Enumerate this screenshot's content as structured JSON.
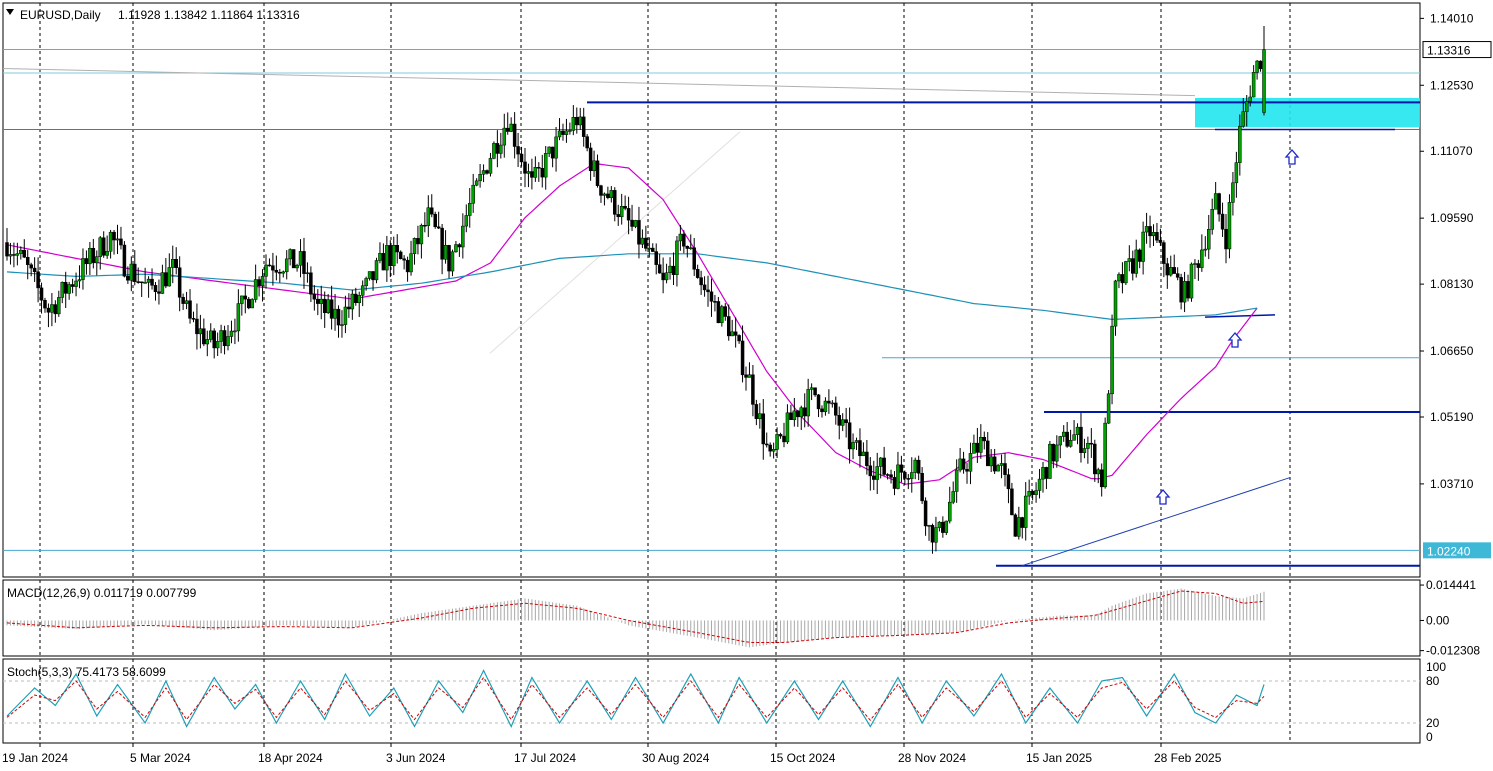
{
  "chart_data": {
    "type": "candlestick",
    "symbol_label": "EURUSD,Daily",
    "ohlc_label": "1.11928 1.13842 1.11864 1.13316",
    "last_price_label": "1.13316",
    "support_price_label": "1.02240",
    "y_ticks": [
      "1.14010",
      "1.12530",
      "1.11070",
      "1.09590",
      "1.08130",
      "1.06650",
      "1.05190",
      "1.03710"
    ],
    "y_range": [
      1.0165,
      1.1435
    ],
    "x_labels": [
      "19 Jan 2024",
      "5 Mar 2024",
      "18 Apr 2024",
      "3 Jun 2024",
      "17 Jul 2024",
      "30 Aug 2024",
      "15 Oct 2024",
      "28 Nov 2024",
      "15 Jan 2025",
      "28 Feb 2025"
    ],
    "price_path": [
      [
        0,
        1.0905
      ],
      [
        5,
        1.086
      ],
      [
        12,
        1.0755
      ],
      [
        20,
        1.083
      ],
      [
        30,
        1.092
      ],
      [
        34,
        1.086
      ],
      [
        41,
        1.08
      ],
      [
        48,
        1.0845
      ],
      [
        53,
        1.073
      ],
      [
        60,
        1.0675
      ],
      [
        67,
        1.0745
      ],
      [
        75,
        1.086
      ],
      [
        85,
        1.086
      ],
      [
        90,
        1.076
      ],
      [
        96,
        1.074
      ],
      [
        103,
        1.079
      ],
      [
        110,
        1.088
      ],
      [
        116,
        1.0855
      ],
      [
        122,
        1.096
      ],
      [
        128,
        1.086
      ],
      [
        134,
        1.0985
      ],
      [
        140,
        1.11
      ],
      [
        145,
        1.118
      ],
      [
        152,
        1.103
      ],
      [
        158,
        1.111
      ],
      [
        165,
        1.118
      ],
      [
        171,
        1.104
      ],
      [
        178,
        1.097
      ],
      [
        185,
        1.089
      ],
      [
        190,
        1.081
      ],
      [
        196,
        1.0915
      ],
      [
        202,
        1.08
      ],
      [
        209,
        1.072
      ],
      [
        215,
        1.06
      ],
      [
        221,
        1.042
      ],
      [
        228,
        1.053
      ],
      [
        234,
        1.057
      ],
      [
        240,
        1.052
      ],
      [
        245,
        1.045
      ],
      [
        251,
        1.041
      ],
      [
        257,
        1.039
      ],
      [
        263,
        1.042
      ],
      [
        267,
        1.027
      ],
      [
        270,
        1.026
      ],
      [
        276,
        1.04
      ],
      [
        282,
        1.046
      ],
      [
        288,
        1.04
      ],
      [
        292,
        1.028
      ],
      [
        297,
        1.034
      ],
      [
        302,
        1.043
      ],
      [
        308,
        1.048
      ],
      [
        313,
        1.046
      ],
      [
        317,
        1.038
      ],
      [
        321,
        1.08
      ],
      [
        326,
        1.086
      ],
      [
        331,
        1.093
      ],
      [
        336,
        1.085
      ],
      [
        341,
        1.079
      ],
      [
        345,
        1.087
      ],
      [
        350,
        1.099
      ],
      [
        353,
        1.092
      ],
      [
        357,
        1.115
      ],
      [
        361,
        1.128
      ],
      [
        364,
        1.133
      ]
    ],
    "moving_averages": [
      {
        "color": "#d000d0",
        "points": [
          [
            0,
            1.09
          ],
          [
            20,
            1.087
          ],
          [
            40,
            1.084
          ],
          [
            60,
            1.082
          ],
          [
            80,
            1.08
          ],
          [
            100,
            1.078
          ],
          [
            115,
            1.08
          ],
          [
            130,
            1.082
          ],
          [
            140,
            1.086
          ],
          [
            150,
            1.096
          ],
          [
            160,
            1.103
          ],
          [
            170,
            1.108
          ],
          [
            180,
            1.107
          ],
          [
            190,
            1.1
          ],
          [
            200,
            1.088
          ],
          [
            210,
            1.075
          ],
          [
            220,
            1.062
          ],
          [
            230,
            1.052
          ],
          [
            240,
            1.044
          ],
          [
            250,
            1.04
          ],
          [
            260,
            1.037
          ],
          [
            270,
            1.038
          ],
          [
            280,
            1.043
          ],
          [
            290,
            1.044
          ],
          [
            300,
            1.0425
          ],
          [
            310,
            1.0395
          ],
          [
            315,
            1.038
          ],
          [
            320,
            1.039
          ],
          [
            330,
            1.048
          ],
          [
            340,
            1.056
          ],
          [
            350,
            1.063
          ],
          [
            355,
            1.069
          ],
          [
            362,
            1.076
          ]
        ]
      },
      {
        "color": "#1e90b8",
        "points": [
          [
            0,
            1.084
          ],
          [
            20,
            1.083
          ],
          [
            40,
            1.0835
          ],
          [
            60,
            1.0825
          ],
          [
            80,
            1.0815
          ],
          [
            100,
            1.08
          ],
          [
            120,
            1.0815
          ],
          [
            140,
            1.084
          ],
          [
            160,
            1.087
          ],
          [
            180,
            1.088
          ],
          [
            200,
            1.088
          ],
          [
            220,
            1.086
          ],
          [
            240,
            1.083
          ],
          [
            260,
            1.08
          ],
          [
            280,
            1.077
          ],
          [
            300,
            1.0755
          ],
          [
            320,
            1.0735
          ],
          [
            335,
            1.074
          ],
          [
            350,
            1.0745
          ],
          [
            362,
            1.076
          ]
        ]
      }
    ],
    "horizontal_levels": [
      {
        "price": 1.1332,
        "color": "#8aa0a0"
      },
      {
        "price": 1.128,
        "color": "#7ec8d8"
      },
      {
        "price": 1.1155,
        "color": "#707070"
      },
      {
        "price": 1.065,
        "color": "#4aa6d0"
      },
      {
        "price": 1.0224,
        "color": "#4aa6d0"
      }
    ],
    "resistance_zone": [
      1.116,
      1.1225
    ],
    "macd": {
      "label": "MACD(12,26,9) 0.011719 0.007799",
      "y_ticks": [
        "0.014441",
        "0.00",
        "-0.012308"
      ],
      "y_range": [
        -0.0145,
        0.0165
      ],
      "histogram": [
        [
          0,
          -0.002
        ],
        [
          20,
          -0.0035
        ],
        [
          40,
          -0.0015
        ],
        [
          60,
          -0.004
        ],
        [
          80,
          -0.002
        ],
        [
          100,
          -0.003
        ],
        [
          120,
          0.003
        ],
        [
          135,
          0.006
        ],
        [
          150,
          0.009
        ],
        [
          165,
          0.006
        ],
        [
          180,
          -0.002
        ],
        [
          200,
          -0.007
        ],
        [
          215,
          -0.011
        ],
        [
          225,
          -0.009
        ],
        [
          240,
          -0.007
        ],
        [
          260,
          -0.006
        ],
        [
          275,
          -0.005
        ],
        [
          290,
          0.0
        ],
        [
          305,
          0.002
        ],
        [
          315,
          0.002
        ],
        [
          320,
          0.006
        ],
        [
          330,
          0.011
        ],
        [
          340,
          0.013
        ],
        [
          350,
          0.01
        ],
        [
          358,
          0.009
        ],
        [
          364,
          0.0117
        ]
      ],
      "signal": [
        [
          0,
          -0.001
        ],
        [
          20,
          -0.003
        ],
        [
          40,
          -0.002
        ],
        [
          60,
          -0.003
        ],
        [
          80,
          -0.0025
        ],
        [
          100,
          -0.003
        ],
        [
          120,
          0.001
        ],
        [
          135,
          0.005
        ],
        [
          150,
          0.007
        ],
        [
          165,
          0.005
        ],
        [
          180,
          0.0
        ],
        [
          200,
          -0.005
        ],
        [
          215,
          -0.009
        ],
        [
          225,
          -0.009
        ],
        [
          240,
          -0.007
        ],
        [
          260,
          -0.006
        ],
        [
          275,
          -0.005
        ],
        [
          290,
          -0.001
        ],
        [
          305,
          0.001
        ],
        [
          315,
          0.002
        ],
        [
          320,
          0.004
        ],
        [
          330,
          0.008
        ],
        [
          340,
          0.012
        ],
        [
          350,
          0.011
        ],
        [
          358,
          0.007
        ],
        [
          364,
          0.0078
        ]
      ]
    },
    "stoch": {
      "label": "Stoch(5,3,3) 75.4173 58.6099",
      "y_ticks": [
        "100",
        "80",
        "20",
        "0"
      ],
      "y_range": [
        0,
        100
      ],
      "main": [
        [
          0,
          30
        ],
        [
          8,
          70
        ],
        [
          14,
          45
        ],
        [
          20,
          90
        ],
        [
          26,
          30
        ],
        [
          32,
          75
        ],
        [
          40,
          20
        ],
        [
          46,
          80
        ],
        [
          52,
          15
        ],
        [
          60,
          85
        ],
        [
          66,
          40
        ],
        [
          72,
          75
        ],
        [
          78,
          20
        ],
        [
          85,
          80
        ],
        [
          92,
          25
        ],
        [
          98,
          90
        ],
        [
          105,
          30
        ],
        [
          112,
          70
        ],
        [
          118,
          15
        ],
        [
          125,
          80
        ],
        [
          132,
          35
        ],
        [
          138,
          95
        ],
        [
          146,
          15
        ],
        [
          152,
          85
        ],
        [
          160,
          20
        ],
        [
          168,
          80
        ],
        [
          175,
          25
        ],
        [
          182,
          85
        ],
        [
          190,
          20
        ],
        [
          198,
          90
        ],
        [
          206,
          20
        ],
        [
          212,
          85
        ],
        [
          220,
          20
        ],
        [
          228,
          80
        ],
        [
          235,
          25
        ],
        [
          242,
          80
        ],
        [
          250,
          15
        ],
        [
          258,
          85
        ],
        [
          265,
          20
        ],
        [
          272,
          80
        ],
        [
          280,
          30
        ],
        [
          288,
          90
        ],
        [
          295,
          20
        ],
        [
          302,
          70
        ],
        [
          310,
          20
        ],
        [
          317,
          80
        ],
        [
          323,
          85
        ],
        [
          330,
          30
        ],
        [
          338,
          90
        ],
        [
          344,
          35
        ],
        [
          350,
          20
        ],
        [
          356,
          60
        ],
        [
          362,
          45
        ],
        [
          364,
          75
        ]
      ],
      "signal": [
        [
          0,
          28
        ],
        [
          8,
          60
        ],
        [
          14,
          52
        ],
        [
          20,
          80
        ],
        [
          26,
          40
        ],
        [
          32,
          65
        ],
        [
          40,
          28
        ],
        [
          46,
          70
        ],
        [
          52,
          25
        ],
        [
          60,
          75
        ],
        [
          66,
          48
        ],
        [
          72,
          68
        ],
        [
          78,
          28
        ],
        [
          85,
          70
        ],
        [
          92,
          32
        ],
        [
          98,
          80
        ],
        [
          105,
          38
        ],
        [
          112,
          62
        ],
        [
          118,
          25
        ],
        [
          125,
          70
        ],
        [
          132,
          42
        ],
        [
          138,
          85
        ],
        [
          146,
          25
        ],
        [
          152,
          75
        ],
        [
          160,
          28
        ],
        [
          168,
          70
        ],
        [
          175,
          32
        ],
        [
          182,
          75
        ],
        [
          190,
          28
        ],
        [
          198,
          80
        ],
        [
          206,
          28
        ],
        [
          212,
          75
        ],
        [
          220,
          28
        ],
        [
          228,
          70
        ],
        [
          235,
          32
        ],
        [
          242,
          70
        ],
        [
          250,
          24
        ],
        [
          258,
          75
        ],
        [
          265,
          28
        ],
        [
          272,
          70
        ],
        [
          280,
          36
        ],
        [
          288,
          80
        ],
        [
          295,
          28
        ],
        [
          302,
          62
        ],
        [
          310,
          28
        ],
        [
          317,
          70
        ],
        [
          323,
          78
        ],
        [
          330,
          40
        ],
        [
          338,
          80
        ],
        [
          344,
          42
        ],
        [
          350,
          28
        ],
        [
          356,
          52
        ],
        [
          362,
          48
        ],
        [
          364,
          58
        ]
      ]
    }
  }
}
